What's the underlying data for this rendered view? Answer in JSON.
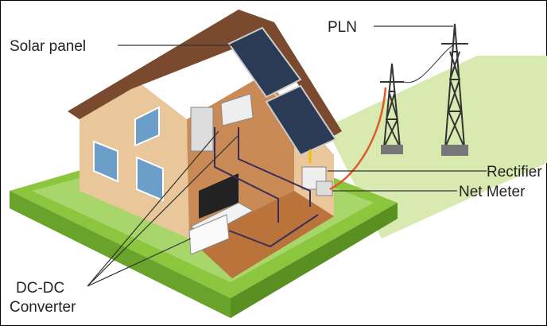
{
  "labels": {
    "solar_panel": "Solar panel",
    "pln": "PLN",
    "rectifier": "Rectifier",
    "net_meter": "Net Meter",
    "dc_dc_converter": [
      "DC-DC",
      "Converter"
    ]
  }
}
